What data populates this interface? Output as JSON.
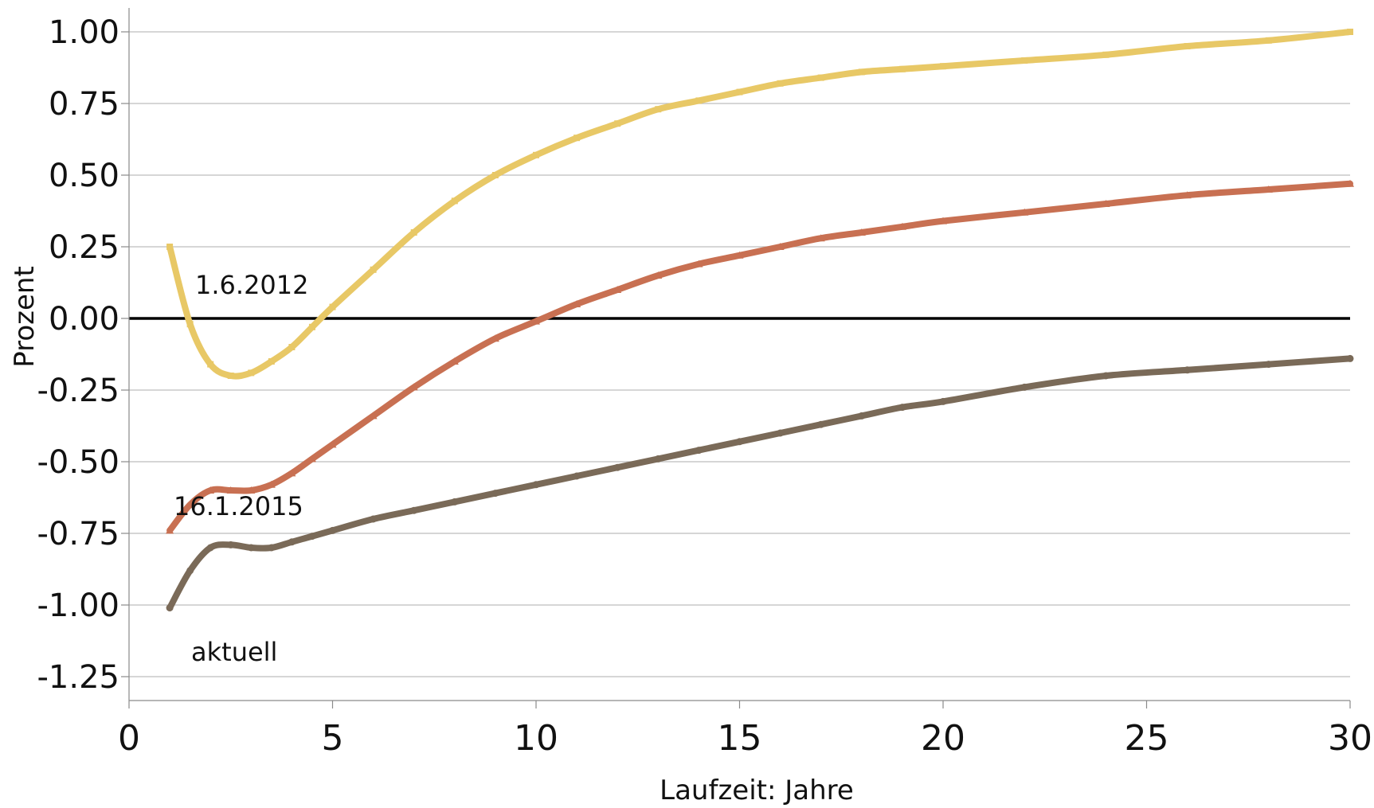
{
  "chart_data": {
    "type": "line",
    "title": "",
    "xlabel": "Laufzeit: Jahre",
    "ylabel": "Prozent",
    "xlim": [
      0,
      30
    ],
    "ylim": [
      -1.25,
      1.05
    ],
    "xticks": [
      0,
      5,
      10,
      15,
      20,
      25,
      30
    ],
    "xtick_labels": [
      "0",
      "5",
      "10",
      "15",
      "20",
      "25",
      "30"
    ],
    "yticks": [
      1.0,
      0.75,
      0.5,
      0.25,
      0.0,
      -0.25,
      -0.5,
      -0.75,
      -1.0,
      -1.25
    ],
    "ytick_labels": [
      "1.00",
      "0.75",
      "0.50",
      "0.25",
      "0.00",
      "-0.25",
      "-0.50",
      "-0.75",
      "-1.00",
      "-1.25"
    ],
    "grid": true,
    "legend": "none",
    "series": [
      {
        "name": "1.6.2012",
        "color": "#e8c866",
        "marker": "square",
        "x": [
          1,
          1.5,
          2,
          2.5,
          3,
          3.5,
          4,
          4.5,
          5,
          6,
          7,
          8,
          9,
          10,
          11,
          12,
          13,
          14,
          15,
          16,
          17,
          18,
          19,
          20,
          22,
          24,
          26,
          28,
          30
        ],
        "values": [
          0.25,
          -0.02,
          -0.16,
          -0.2,
          -0.19,
          -0.15,
          -0.1,
          -0.03,
          0.04,
          0.17,
          0.3,
          0.41,
          0.5,
          0.57,
          0.63,
          0.68,
          0.73,
          0.76,
          0.79,
          0.82,
          0.84,
          0.86,
          0.87,
          0.88,
          0.9,
          0.92,
          0.95,
          0.97,
          1.0
        ]
      },
      {
        "name": "16.1.2015",
        "color": "#c87052",
        "marker": "triangle",
        "x": [
          1,
          1.5,
          2,
          2.5,
          3,
          3.5,
          4,
          4.5,
          5,
          6,
          7,
          8,
          9,
          10,
          11,
          12,
          13,
          14,
          15,
          16,
          17,
          18,
          19,
          20,
          22,
          24,
          26,
          28,
          30
        ],
        "values": [
          -0.74,
          -0.65,
          -0.6,
          -0.6,
          -0.6,
          -0.58,
          -0.54,
          -0.49,
          -0.44,
          -0.34,
          -0.24,
          -0.15,
          -0.07,
          -0.01,
          0.05,
          0.1,
          0.15,
          0.19,
          0.22,
          0.25,
          0.28,
          0.3,
          0.32,
          0.34,
          0.37,
          0.4,
          0.43,
          0.45,
          0.47
        ]
      },
      {
        "name": "aktuell",
        "color": "#7a6a58",
        "marker": "circle",
        "x": [
          1,
          1.5,
          2,
          2.5,
          3,
          3.5,
          4,
          4.5,
          5,
          6,
          7,
          8,
          9,
          10,
          11,
          12,
          13,
          14,
          15,
          16,
          17,
          18,
          19,
          20,
          22,
          24,
          26,
          28,
          30
        ],
        "values": [
          -1.01,
          -0.88,
          -0.8,
          -0.79,
          -0.8,
          -0.8,
          -0.78,
          -0.76,
          -0.74,
          -0.7,
          -0.67,
          -0.64,
          -0.61,
          -0.58,
          -0.55,
          -0.52,
          -0.49,
          -0.46,
          -0.43,
          -0.4,
          -0.37,
          -0.34,
          -0.31,
          -0.29,
          -0.24,
          -0.2,
          -0.18,
          -0.16,
          -0.14
        ]
      }
    ],
    "annotations": [
      "1.6.2012",
      "16.1.2015",
      "aktuell"
    ],
    "zero_line_color": "#000000",
    "grid_color": "#bdbdbd",
    "axis_color": "#8a8a8a"
  }
}
